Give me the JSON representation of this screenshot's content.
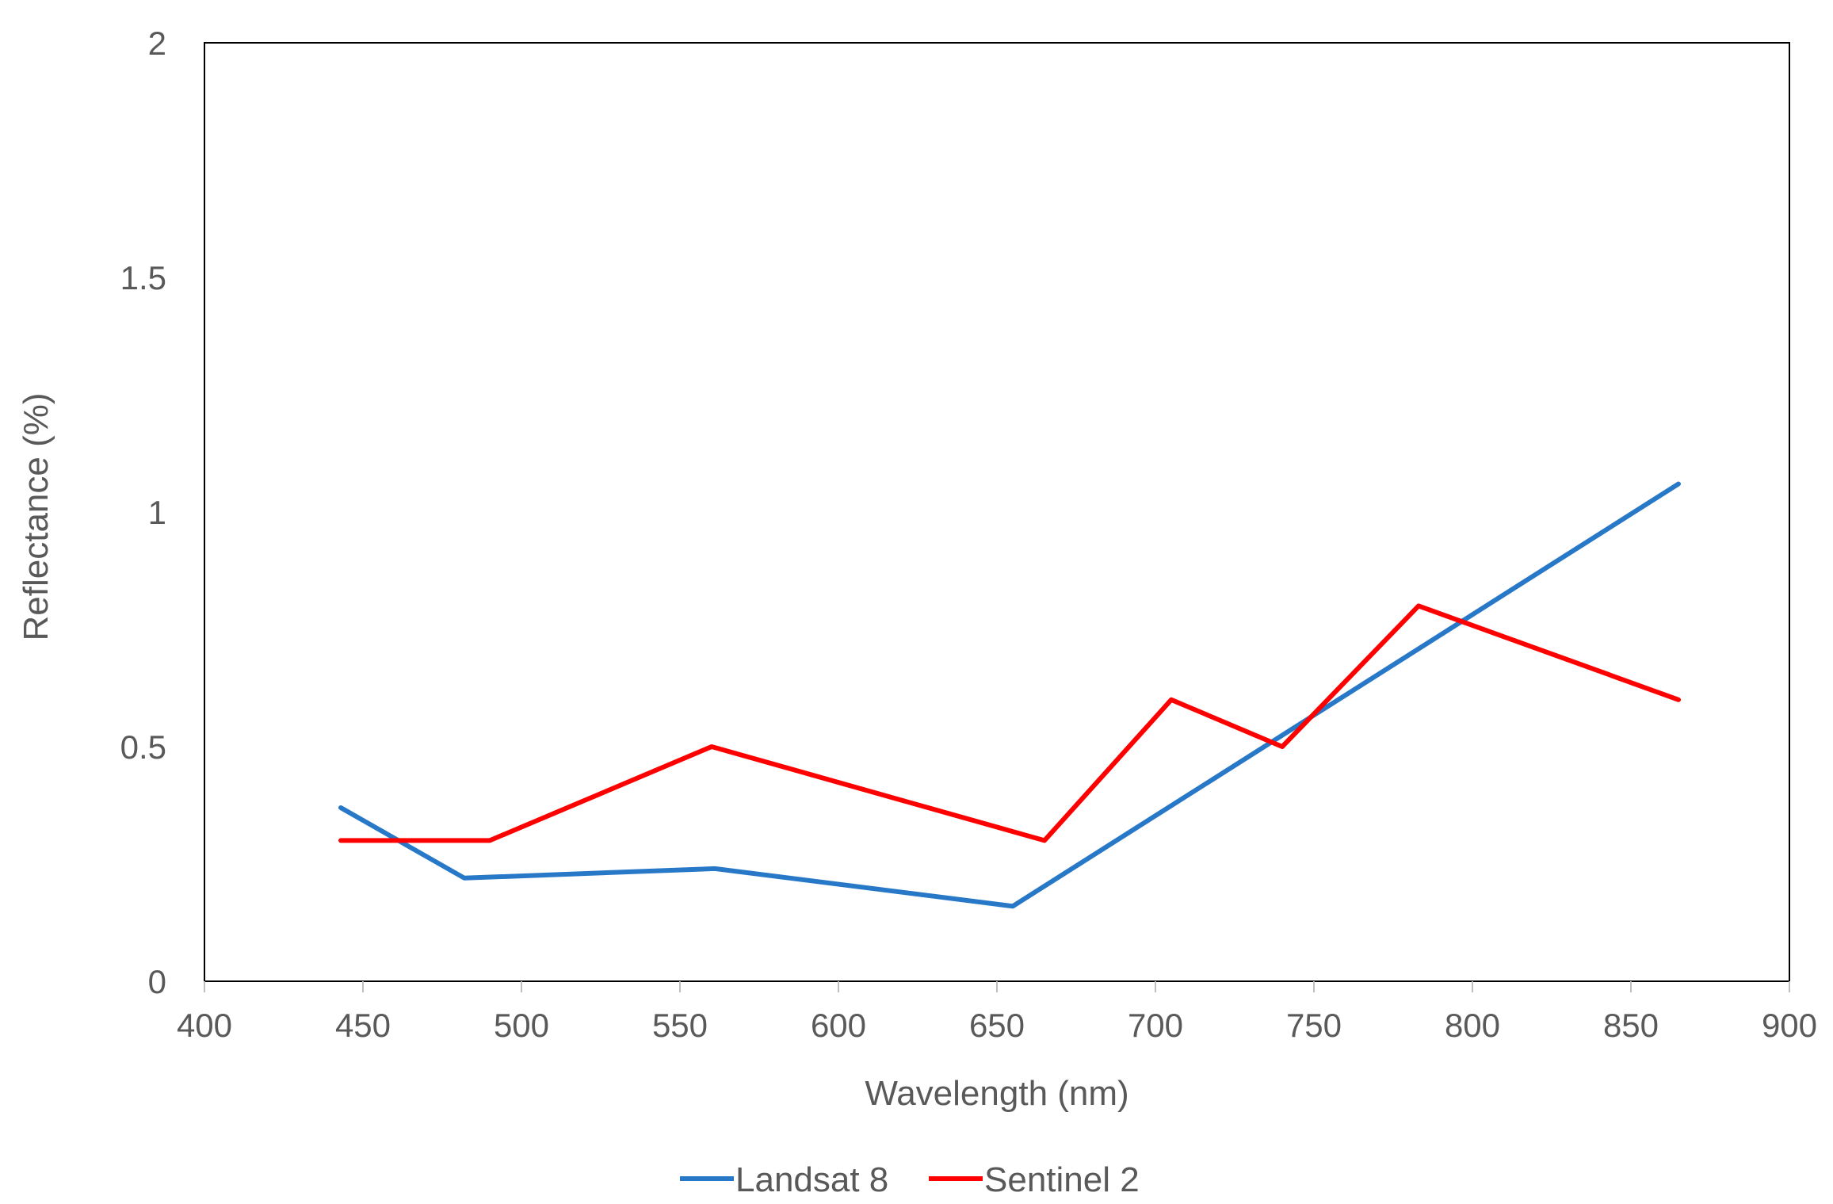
{
  "chart_data": {
    "type": "line",
    "title": "",
    "xlabel": "Wavelength (nm)",
    "ylabel": "Reflectance (%)",
    "xlim": [
      400,
      900
    ],
    "ylim": [
      0,
      2
    ],
    "xticks": [
      400,
      450,
      500,
      550,
      600,
      650,
      700,
      750,
      800,
      850,
      900
    ],
    "yticks": [
      0,
      0.5,
      1,
      1.5,
      2
    ],
    "grid": false,
    "legend": "bottom",
    "series": [
      {
        "name": "Landsat 8",
        "color": "#2878c8",
        "x": [
          443,
          482,
          561,
          655,
          865
        ],
        "y": [
          0.37,
          0.22,
          0.24,
          0.16,
          1.06
        ]
      },
      {
        "name": "Sentinel 2",
        "color": "#ff0000",
        "x": [
          443,
          490,
          560,
          665,
          705,
          740,
          783,
          865
        ],
        "y": [
          0.3,
          0.3,
          0.5,
          0.3,
          0.6,
          0.5,
          0.8,
          0.6
        ]
      }
    ]
  }
}
